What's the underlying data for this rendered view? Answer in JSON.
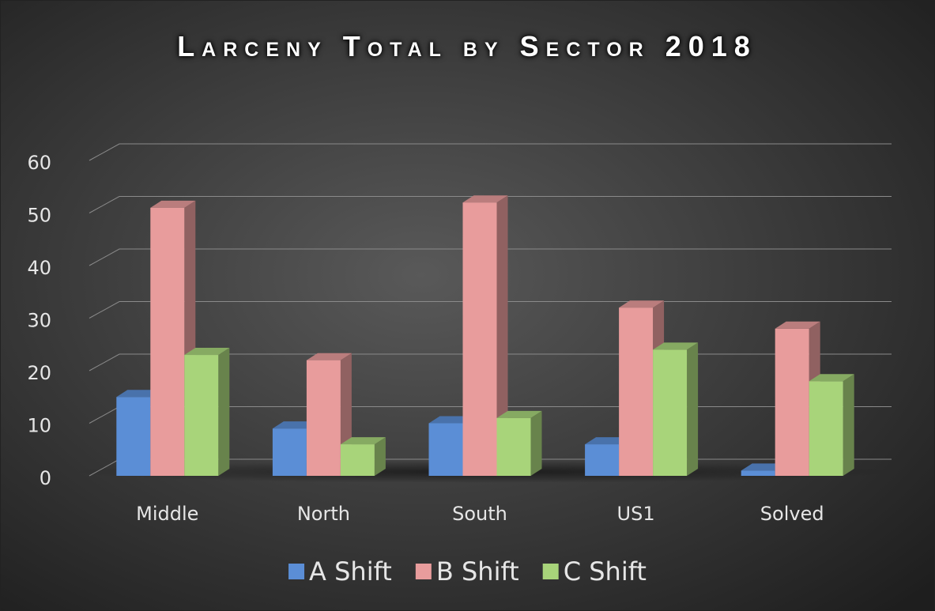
{
  "chart_data": {
    "type": "bar3d",
    "title": "Larceny Total by Sector 2018",
    "categories": [
      "Middle",
      "North",
      "South",
      "US1",
      "Solved"
    ],
    "series": [
      {
        "name": "A Shift",
        "color": "#5b8ed6",
        "values": [
          15,
          9,
          10,
          6,
          1
        ]
      },
      {
        "name": "B Shift",
        "color": "#e89c9c",
        "values": [
          51,
          22,
          52,
          32,
          28
        ]
      },
      {
        "name": "C Shift",
        "color": "#a8d47a",
        "values": [
          23,
          6,
          11,
          24,
          18
        ]
      }
    ],
    "ylim": [
      0,
      60
    ],
    "yticks": [
      0,
      10,
      20,
      30,
      40,
      50,
      60
    ],
    "grid": true,
    "legend": "bottom"
  }
}
